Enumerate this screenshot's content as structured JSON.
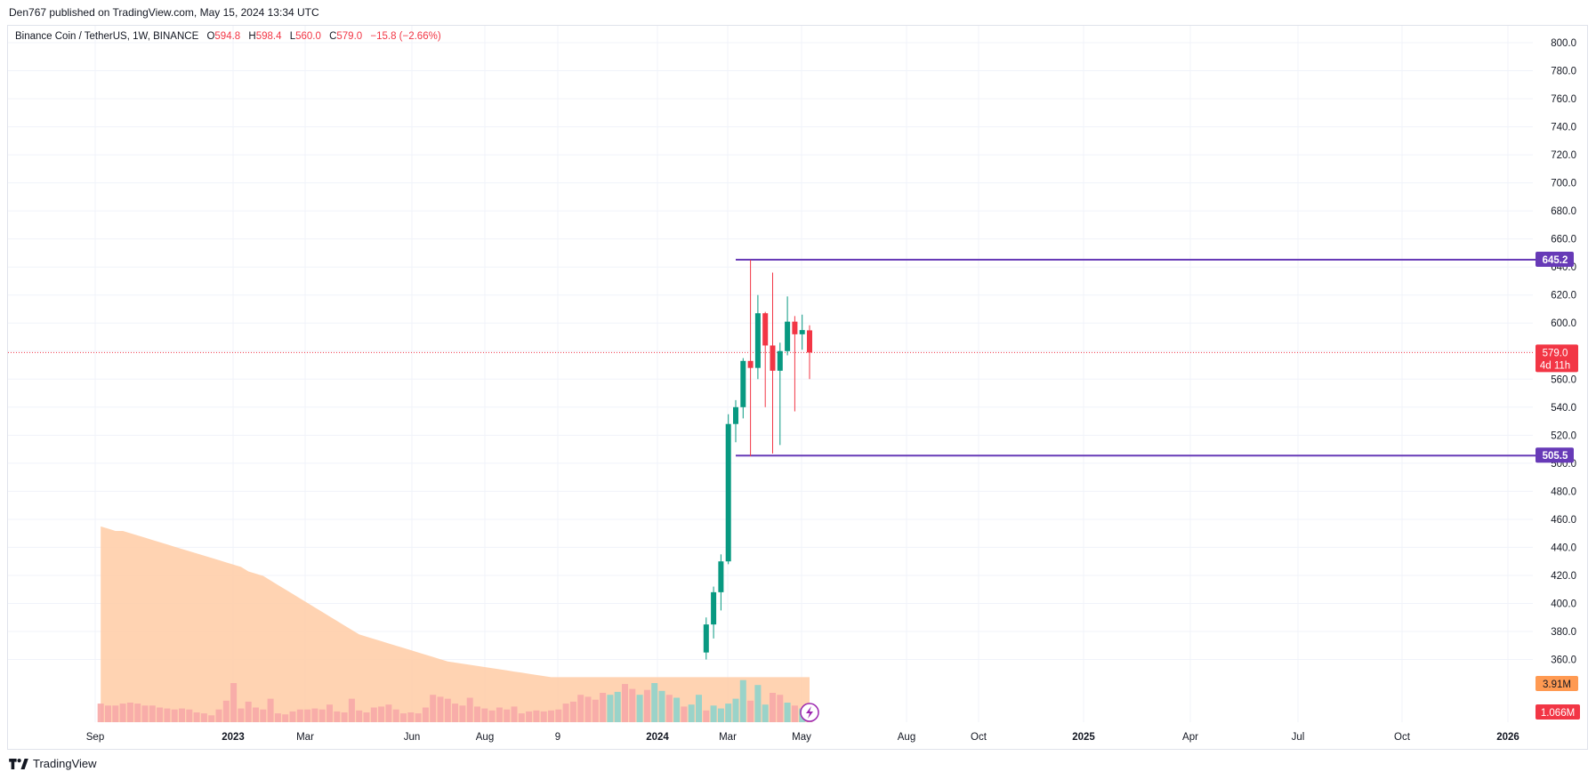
{
  "header": {
    "published": "Den767 published on TradingView.com, May 15, 2024 13:34 UTC"
  },
  "legend": {
    "symbol": "Binance Coin / TetherUS, 1W, BINANCE",
    "open_key": "O",
    "open": "594.8",
    "high_key": "H",
    "high": "598.4",
    "low_key": "L",
    "low": "560.0",
    "close_key": "C",
    "close": "579.0",
    "change": "−15.8 (−2.66%)"
  },
  "footer": {
    "brand": "TradingView",
    "logo_icon": "tradingview-logo-icon"
  },
  "colors": {
    "up": "#089981",
    "down": "#f23645",
    "up_volume": "#8fd3cb",
    "down_volume": "#f7a9a7",
    "ma_area": "#ffcba4",
    "hline": "#673ab7",
    "grid": "#f0f3fa"
  },
  "chart_data": {
    "type": "candlestick",
    "timeframe": "1W",
    "price_axis": {
      "range": [
        360,
        810
      ],
      "ticks": [
        "800.0",
        "780.0",
        "760.0",
        "740.0",
        "720.0",
        "700.0",
        "680.0",
        "660.0",
        "640.0",
        "620.0",
        "600.0",
        "580.0",
        "560.0",
        "540.0",
        "520.0",
        "500.0",
        "480.0",
        "460.0",
        "440.0",
        "420.0",
        "400.0",
        "380.0",
        "360.0"
      ]
    },
    "time_axis": {
      "labels": [
        {
          "text": "Sep",
          "bold": false
        },
        {
          "text": "2023",
          "bold": true
        },
        {
          "text": "Mar",
          "bold": false
        },
        {
          "text": "Jun",
          "bold": false
        },
        {
          "text": "Aug",
          "bold": false
        },
        {
          "text": "9",
          "bold": false
        },
        {
          "text": "2024",
          "bold": true
        },
        {
          "text": "Mar",
          "bold": false
        },
        {
          "text": "May",
          "bold": false
        },
        {
          "text": "Aug",
          "bold": false
        },
        {
          "text": "Oct",
          "bold": false
        },
        {
          "text": "2025",
          "bold": true
        },
        {
          "text": "Apr",
          "bold": false
        },
        {
          "text": "Jul",
          "bold": false
        },
        {
          "text": "Oct",
          "bold": false
        },
        {
          "text": "2026",
          "bold": true
        }
      ]
    },
    "candles": [
      {
        "o": 365,
        "h": 390,
        "l": 360,
        "c": 385
      },
      {
        "o": 385,
        "h": 412,
        "l": 375,
        "c": 408
      },
      {
        "o": 408,
        "h": 435,
        "l": 395,
        "c": 430
      },
      {
        "o": 430,
        "h": 535,
        "l": 428,
        "c": 528
      },
      {
        "o": 528,
        "h": 545,
        "l": 515,
        "c": 540
      },
      {
        "o": 540,
        "h": 575,
        "l": 532,
        "c": 573
      },
      {
        "o": 573,
        "h": 645,
        "l": 505,
        "c": 568
      },
      {
        "o": 568,
        "h": 620,
        "l": 560,
        "c": 607
      },
      {
        "o": 607,
        "h": 608,
        "l": 540,
        "c": 584
      },
      {
        "o": 584,
        "h": 636,
        "l": 507,
        "c": 566
      },
      {
        "o": 566,
        "h": 586,
        "l": 513,
        "c": 580
      },
      {
        "o": 580,
        "h": 619,
        "l": 577,
        "c": 601
      },
      {
        "o": 601,
        "h": 605,
        "l": 537,
        "c": 592
      },
      {
        "o": 592,
        "h": 606,
        "l": 581,
        "c": 595
      },
      {
        "o": 594.8,
        "h": 598.4,
        "l": 560.0,
        "c": 579.0
      }
    ],
    "volume": {
      "values": [
        1.9,
        1.7,
        1.7,
        1.9,
        2.0,
        1.9,
        1.7,
        1.7,
        1.5,
        1.4,
        1.3,
        1.4,
        1.3,
        1.0,
        0.9,
        0.7,
        1.3,
        2.2,
        4.0,
        1.4,
        2.1,
        1.5,
        1.3,
        2.4,
        0.9,
        0.8,
        1.1,
        1.3,
        1.3,
        1.4,
        1.3,
        1.8,
        1.1,
        1.0,
        2.4,
        1.2,
        1.0,
        1.5,
        1.6,
        1.8,
        1.3,
        0.9,
        1.0,
        0.9,
        1.5,
        2.8,
        2.6,
        2.4,
        1.9,
        1.7,
        2.5,
        1.6,
        1.4,
        1.2,
        1.5,
        1.3,
        1.6,
        0.9,
        1.1,
        1.2,
        1.1,
        1.2,
        1.3,
        1.9,
        2.1,
        2.8,
        2.6,
        2.3,
        3.0,
        2.8,
        3.1,
        3.9,
        3.4,
        2.8,
        3.3,
        4.0,
        3.2,
        2.8,
        2.5,
        1.6,
        1.8,
        2.8,
        1.2,
        1.7,
        1.4,
        1.9,
        2.4,
        4.3,
        2.2,
        3.8,
        1.8,
        3.0,
        2.8,
        2.0,
        1.7,
        1.4,
        1.4
      ],
      "up": [
        false,
        false,
        false,
        false,
        false,
        false,
        false,
        false,
        false,
        false,
        false,
        false,
        false,
        false,
        false,
        false,
        false,
        false,
        false,
        false,
        false,
        false,
        false,
        false,
        false,
        false,
        false,
        false,
        false,
        false,
        false,
        false,
        false,
        false,
        false,
        false,
        false,
        false,
        false,
        false,
        false,
        false,
        false,
        false,
        false,
        false,
        false,
        false,
        false,
        false,
        false,
        false,
        false,
        false,
        false,
        false,
        false,
        false,
        false,
        false,
        false,
        false,
        false,
        false,
        false,
        false,
        false,
        false,
        false,
        true,
        true,
        false,
        false,
        true,
        false,
        true,
        true,
        false,
        true,
        false,
        true,
        true,
        false,
        true,
        true,
        true,
        true,
        true,
        false,
        true,
        true,
        false,
        false,
        true,
        false,
        true,
        false
      ]
    },
    "volume_ma": [
      8.7,
      8.6,
      8.5,
      8.5,
      8.4,
      8.3,
      8.2,
      8.1,
      8.0,
      7.9,
      7.8,
      7.7,
      7.6,
      7.5,
      7.4,
      7.3,
      7.2,
      7.1,
      7.0,
      6.9,
      6.7,
      6.6,
      6.5,
      6.3,
      6.1,
      5.9,
      5.7,
      5.5,
      5.3,
      5.1,
      4.9,
      4.7,
      4.5,
      4.3,
      4.1,
      3.9,
      3.8,
      3.7,
      3.6,
      3.5,
      3.4,
      3.3,
      3.2,
      3.1,
      3.0,
      2.9,
      2.8,
      2.7,
      2.65,
      2.6,
      2.55,
      2.5,
      2.45,
      2.4,
      2.35,
      2.3,
      2.25,
      2.2,
      2.15,
      2.1,
      2.05,
      2.0,
      2.0,
      2.0,
      2.0,
      2.0,
      2.0,
      2.0,
      2.0,
      2.0,
      2.0,
      2.0,
      2.0,
      2.0,
      2.0,
      2.0,
      2.0,
      2.0,
      2.0,
      2.0,
      2.0,
      2.0,
      2.0,
      2.0,
      2.0,
      2.0,
      2.0,
      2.0,
      2.0,
      2.0,
      2.0,
      2.0,
      2.0,
      2.0,
      2.0,
      2.0,
      2.0
    ],
    "horizontal_lines": [
      {
        "price": 645.2,
        "label": "645.2"
      },
      {
        "price": 505.5,
        "label": "505.5"
      }
    ],
    "last_price": {
      "value": 579.0,
      "label": "579.0",
      "countdown": "4d 11h"
    },
    "volume_ma_label": "3.91M",
    "volume_label": "1.066M",
    "grid": true
  }
}
